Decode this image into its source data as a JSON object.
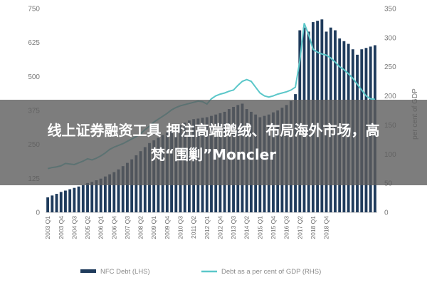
{
  "overlay": {
    "line1": "线上证券融资工具 押注高端鹅绒、布局海外市场，高",
    "line2": "梵“围剿”Moncler"
  },
  "colors": {
    "bar": "#1f3b5c",
    "line": "#5bc7c9",
    "axis_text": "#7a7a7a",
    "grid": "#d9d9d9"
  },
  "chart_data": {
    "type": "bar+line",
    "title": "",
    "xlabel": "",
    "ylabel_left": "",
    "ylabel_right": "per cent of GDP",
    "ylim_left": [
      0,
      750
    ],
    "ylim_right": [
      0,
      350
    ],
    "yticks_left": [
      0,
      125,
      250,
      375,
      500,
      625,
      750
    ],
    "yticks_right": [
      0,
      50,
      100,
      150,
      200,
      250,
      300,
      350
    ],
    "grid": false,
    "legend_position": "bottom",
    "x_tick_labels": [
      "2003 Q1",
      "2003 Q4",
      "2004 Q3",
      "2005 Q2",
      "2006 Q1",
      "2006 Q4",
      "2007 Q3",
      "2008 Q2",
      "2009 Q1",
      "2009 Q4",
      "2010 Q3",
      "2011 Q2",
      "2012 Q1",
      "2012 Q4",
      "2013 Q3",
      "2014 Q2",
      "2015 Q1",
      "2015 Q4",
      "2016 Q3",
      "2017 Q2",
      "2018 Q1",
      "2018 Q4"
    ],
    "series": [
      {
        "name": "NFC Debt (LHS)",
        "type": "bar",
        "axis": "left",
        "values": [
          55,
          62,
          68,
          75,
          80,
          85,
          90,
          95,
          100,
          108,
          112,
          118,
          124,
          132,
          140,
          148,
          158,
          170,
          182,
          195,
          210,
          225,
          240,
          255,
          265,
          275,
          285,
          295,
          305,
          315,
          320,
          330,
          338,
          343,
          345,
          348,
          350,
          355,
          360,
          365,
          370,
          380,
          388,
          395,
          400,
          380,
          370,
          360,
          350,
          355,
          360,
          368,
          375,
          385,
          395,
          410,
          435,
          670,
          680,
          665,
          700,
          705,
          710,
          665,
          680,
          670,
          640,
          630,
          620,
          600,
          580,
          600,
          605,
          610,
          615
        ]
      },
      {
        "name": "Debt as a per cent of GDP (RHS)",
        "type": "line",
        "axis": "right",
        "values": [
          75,
          77,
          78,
          80,
          84,
          83,
          82,
          85,
          88,
          92,
          90,
          93,
          97,
          102,
          108,
          112,
          115,
          118,
          122,
          126,
          130,
          135,
          142,
          148,
          155,
          160,
          165,
          170,
          176,
          180,
          183,
          185,
          187,
          189,
          191,
          190,
          186,
          195,
          200,
          203,
          205,
          208,
          210,
          218,
          225,
          228,
          225,
          215,
          205,
          200,
          198,
          200,
          203,
          205,
          207,
          210,
          215,
          260,
          325,
          305,
          280,
          275,
          272,
          270,
          265,
          258,
          250,
          245,
          238,
          230,
          220,
          210,
          200,
          195,
          194
        ]
      }
    ]
  }
}
